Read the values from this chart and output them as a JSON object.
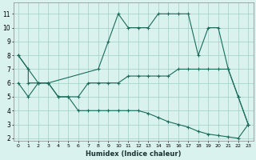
{
  "xlabel": "Humidex (Indice chaleur)",
  "xlim": [
    -0.5,
    23.5
  ],
  "ylim": [
    1.8,
    11.8
  ],
  "yticks": [
    2,
    3,
    4,
    5,
    6,
    7,
    8,
    9,
    10,
    11
  ],
  "xticks": [
    0,
    1,
    2,
    3,
    4,
    5,
    6,
    7,
    8,
    9,
    10,
    11,
    12,
    13,
    14,
    15,
    16,
    17,
    18,
    19,
    20,
    21,
    22,
    23
  ],
  "background_color": "#d9f2ee",
  "grid_color": "#a0cfc8",
  "line_color": "#1a6b5a",
  "line1": {
    "x": [
      0,
      1,
      1,
      2,
      3,
      8,
      9,
      10,
      11,
      12,
      13,
      14,
      15,
      16,
      17,
      18,
      19,
      20,
      21,
      22,
      23
    ],
    "y": [
      8,
      7,
      6,
      6,
      6,
      7,
      9,
      11,
      10,
      10,
      10,
      11,
      11,
      11,
      11,
      8,
      10,
      10,
      7,
      5,
      3
    ]
  },
  "line2": {
    "x": [
      0,
      1,
      2,
      3,
      4,
      5,
      6,
      7,
      8,
      9,
      10,
      11,
      12,
      13,
      14,
      15,
      16,
      17,
      18,
      19,
      20,
      21,
      22,
      23
    ],
    "y": [
      6,
      5,
      6,
      6,
      5,
      5,
      5,
      6,
      6,
      6,
      6,
      6.5,
      6.5,
      6.5,
      6.5,
      6.5,
      7,
      7,
      7,
      7,
      7,
      7,
      5,
      3
    ]
  },
  "line3": {
    "x": [
      0,
      2,
      3,
      4,
      5,
      6,
      7,
      8,
      9,
      10,
      11,
      12,
      13,
      14,
      15,
      16,
      17,
      18,
      19,
      20,
      21,
      22,
      23
    ],
    "y": [
      8,
      6,
      6,
      5,
      5,
      4,
      4,
      4,
      4,
      4,
      4,
      4,
      3.8,
      3.5,
      3.2,
      3,
      2.8,
      2.5,
      2.3,
      2.2,
      2.1,
      2,
      3
    ]
  }
}
